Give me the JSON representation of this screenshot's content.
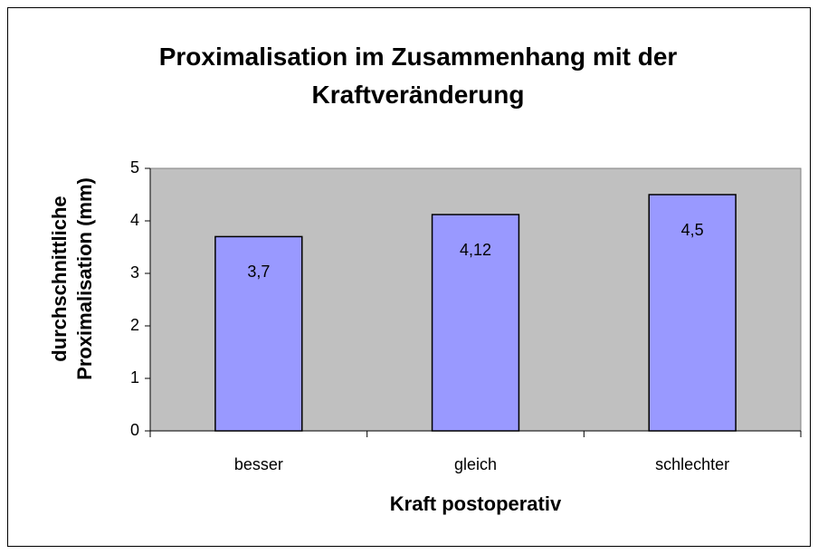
{
  "chart_data": {
    "type": "bar",
    "title": "Proximalisation im Zusammenhang mit der Kraftveränderung",
    "x_label": "Kraft postoperativ",
    "y_label": "durchschnittliche Proximalisation (mm)",
    "categories": [
      "besser",
      "gleich",
      "schlechter"
    ],
    "values": [
      3.7,
      4.12,
      4.5
    ],
    "value_labels": [
      "3,7",
      "4,12",
      "4,5"
    ],
    "color": "#9999ff",
    "ylim": [
      0,
      5
    ],
    "yticks": [
      0,
      1,
      2,
      3,
      4,
      5
    ],
    "grid": false
  }
}
